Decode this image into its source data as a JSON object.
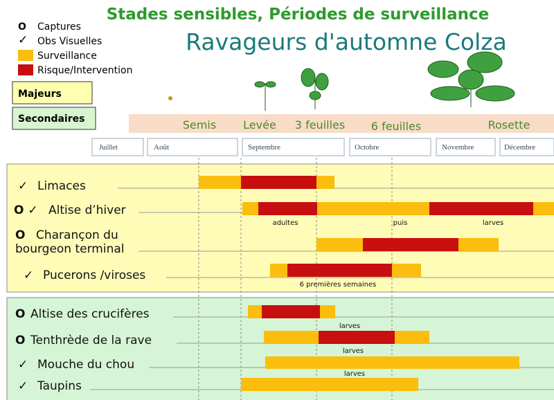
{
  "header": {
    "title": "Stades sensibles, Périodes de surveillance",
    "subtitle": "Ravageurs d'automne Colza"
  },
  "legend": {
    "symbols": [
      "O",
      "✓"
    ],
    "items": [
      "Captures",
      "Obs Visuelles",
      "Surveillance",
      "Risque/Intervention"
    ]
  },
  "groups": [
    "Majeurs",
    "Secondaires"
  ],
  "stages": [
    "Semis",
    "Levée",
    "3 feuilles",
    "6 feuilles",
    "Rosette"
  ],
  "months": [
    "Juillet",
    "Août",
    "Septembre",
    "Octobre",
    "Novembre",
    "Décembre"
  ],
  "rows": [
    {
      "marker": "✓",
      "label": [
        "Limaces"
      ]
    },
    {
      "marker": "O ✓",
      "label": [
        "Altise d’hiver"
      ]
    },
    {
      "marker": "O",
      "label": [
        "Charançon du",
        "bourgeon terminal"
      ]
    },
    {
      "marker": "✓",
      "label": [
        "Pucerons /viroses"
      ]
    },
    {
      "marker": "O",
      "label": [
        "Altise des crucifères"
      ]
    },
    {
      "marker": "O",
      "label": [
        "Tenthrède de la rave"
      ]
    },
    {
      "marker": "✓",
      "label": [
        "Mouche du chou"
      ]
    },
    {
      "marker": "✓",
      "label": [
        "Taupins"
      ]
    }
  ],
  "notes": [
    "adultes",
    "puis",
    "larves",
    "6 premières semaines",
    "larves",
    "larves",
    "larves"
  ]
}
